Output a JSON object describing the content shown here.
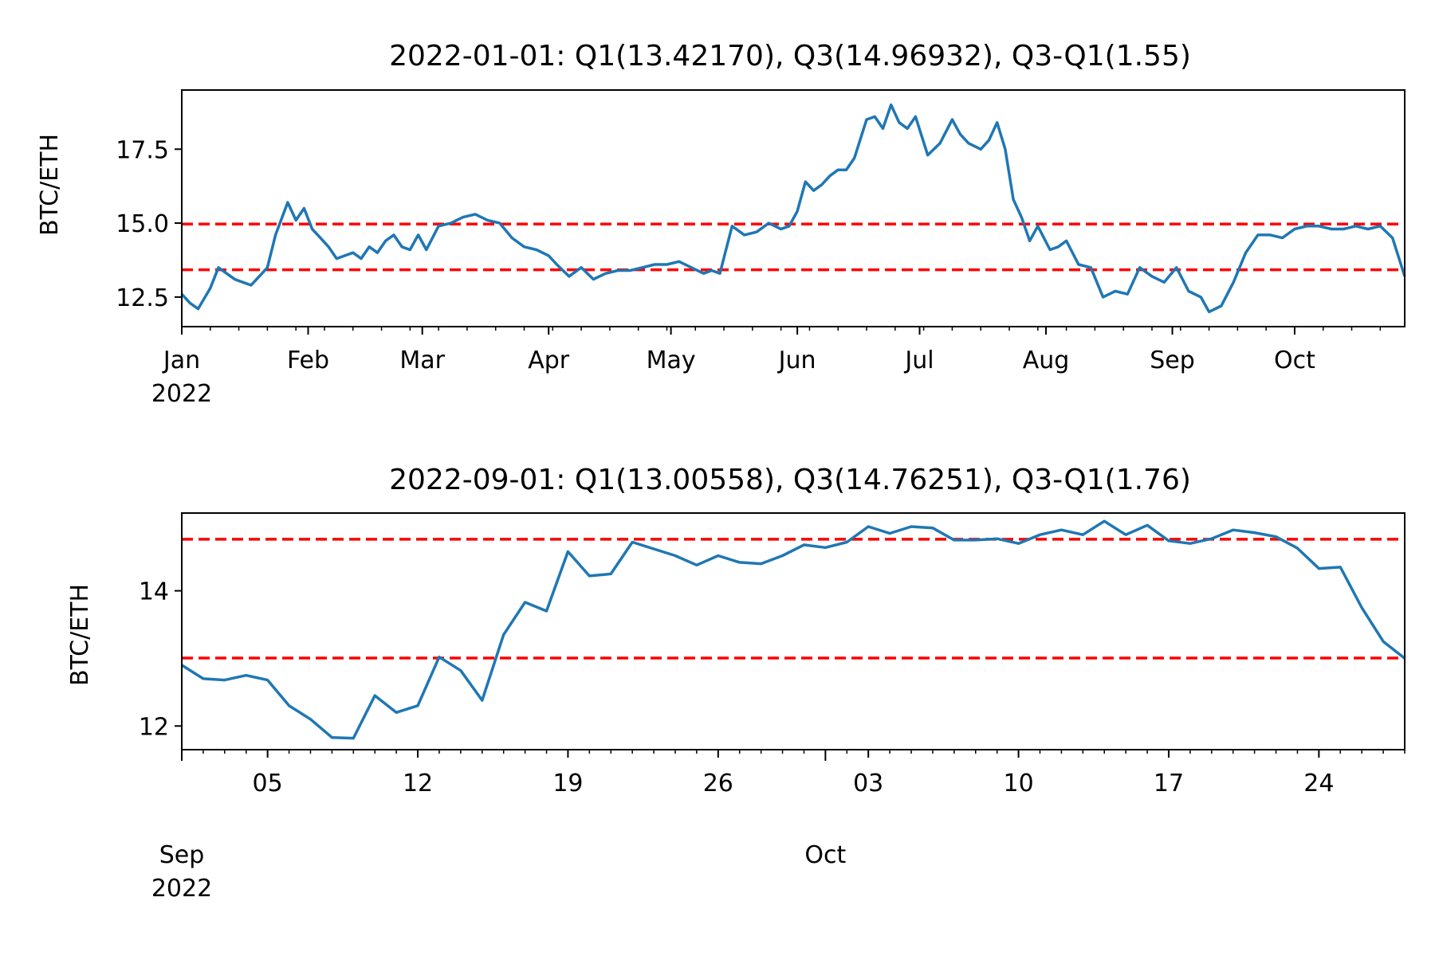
{
  "colors": {
    "line": "#1f77b4",
    "quartile": "#ff0000",
    "axis": "#000000"
  },
  "chart_data": [
    {
      "type": "line",
      "title": "2022-01-01: Q1(13.42170), Q3(14.96932), Q3-Q1(1.55)",
      "ylabel": "BTC/ETH",
      "xlim": [
        "2022-01-01",
        "2022-10-28"
      ],
      "ylim": [
        11.5,
        19.5
      ],
      "yticks": [
        12.5,
        15.0,
        17.5
      ],
      "ytick_labels": [
        "12.5",
        "15.0",
        "17.5"
      ],
      "xticks": [
        "2022-01-01",
        "2022-02-01",
        "2022-03-01",
        "2022-04-01",
        "2022-05-01",
        "2022-06-01",
        "2022-07-01",
        "2022-08-01",
        "2022-09-01",
        "2022-10-01"
      ],
      "xtick_labels": [
        "Jan",
        "Feb",
        "Mar",
        "Apr",
        "May",
        "Jun",
        "Jul",
        "Aug",
        "Sep",
        "Oct"
      ],
      "year_label": "2022",
      "hlines": [
        13.4217,
        14.96932
      ],
      "series": [
        {
          "x": [
            "2022-01-01",
            "2022-01-03",
            "2022-01-05",
            "2022-01-08",
            "2022-01-10",
            "2022-01-12",
            "2022-01-14",
            "2022-01-16",
            "2022-01-18",
            "2022-01-20",
            "2022-01-22",
            "2022-01-24",
            "2022-01-27",
            "2022-01-29",
            "2022-01-31",
            "2022-02-02",
            "2022-02-04",
            "2022-02-06",
            "2022-02-08",
            "2022-02-10",
            "2022-02-12",
            "2022-02-14",
            "2022-02-16",
            "2022-02-18",
            "2022-02-20",
            "2022-02-22",
            "2022-02-24",
            "2022-02-26",
            "2022-02-28",
            "2022-03-02",
            "2022-03-05",
            "2022-03-08",
            "2022-03-11",
            "2022-03-14",
            "2022-03-17",
            "2022-03-20",
            "2022-03-23",
            "2022-03-26",
            "2022-03-29",
            "2022-04-01",
            "2022-04-03",
            "2022-04-06",
            "2022-04-09",
            "2022-04-12",
            "2022-04-15",
            "2022-04-18",
            "2022-04-21",
            "2022-04-24",
            "2022-04-27",
            "2022-04-30",
            "2022-05-03",
            "2022-05-06",
            "2022-05-09",
            "2022-05-11",
            "2022-05-13",
            "2022-05-16",
            "2022-05-19",
            "2022-05-22",
            "2022-05-25",
            "2022-05-28",
            "2022-05-30",
            "2022-06-01",
            "2022-06-03",
            "2022-06-05",
            "2022-06-07",
            "2022-06-09",
            "2022-06-11",
            "2022-06-13",
            "2022-06-15",
            "2022-06-18",
            "2022-06-20",
            "2022-06-22",
            "2022-06-24",
            "2022-06-26",
            "2022-06-28",
            "2022-06-30",
            "2022-07-03",
            "2022-07-06",
            "2022-07-09",
            "2022-07-11",
            "2022-07-13",
            "2022-07-16",
            "2022-07-18",
            "2022-07-20",
            "2022-07-22",
            "2022-07-24",
            "2022-07-26",
            "2022-07-28",
            "2022-07-30",
            "2022-08-02",
            "2022-08-04",
            "2022-08-06",
            "2022-08-09",
            "2022-08-12",
            "2022-08-15",
            "2022-08-18",
            "2022-08-21",
            "2022-08-24",
            "2022-08-27",
            "2022-08-30",
            "2022-09-02",
            "2022-09-05",
            "2022-09-08",
            "2022-09-10",
            "2022-09-13",
            "2022-09-16",
            "2022-09-19",
            "2022-09-22",
            "2022-09-25",
            "2022-09-28",
            "2022-10-01",
            "2022-10-04",
            "2022-10-07",
            "2022-10-10",
            "2022-10-13",
            "2022-10-16",
            "2022-10-19",
            "2022-10-22",
            "2022-10-25",
            "2022-10-28"
          ],
          "y": [
            12.6,
            12.3,
            12.1,
            12.8,
            13.5,
            13.3,
            13.1,
            13.0,
            12.9,
            13.2,
            13.5,
            14.6,
            15.7,
            15.1,
            15.5,
            14.8,
            14.5,
            14.2,
            13.8,
            13.9,
            14.0,
            13.8,
            14.2,
            14.0,
            14.4,
            14.6,
            14.2,
            14.1,
            14.6,
            14.1,
            14.9,
            15.0,
            15.2,
            15.3,
            15.1,
            15.0,
            14.5,
            14.2,
            14.1,
            13.9,
            13.6,
            13.2,
            13.5,
            13.1,
            13.3,
            13.4,
            13.4,
            13.5,
            13.6,
            13.6,
            13.7,
            13.5,
            13.3,
            13.4,
            13.3,
            14.9,
            14.6,
            14.7,
            15.0,
            14.8,
            14.9,
            15.4,
            16.4,
            16.1,
            16.3,
            16.6,
            16.8,
            16.8,
            17.2,
            18.5,
            18.6,
            18.2,
            19.0,
            18.4,
            18.2,
            18.6,
            17.3,
            17.7,
            18.5,
            18.0,
            17.7,
            17.5,
            17.8,
            18.4,
            17.5,
            15.8,
            15.2,
            14.4,
            14.9,
            14.1,
            14.2,
            14.4,
            13.6,
            13.5,
            12.5,
            12.7,
            12.6,
            13.5,
            13.2,
            13.0,
            13.5,
            12.7,
            12.5,
            12.0,
            12.2,
            13.0,
            14.0,
            14.6,
            14.6,
            14.5,
            14.8,
            14.9,
            14.9,
            14.8,
            14.8,
            14.9,
            14.8,
            14.9,
            14.5,
            13.2
          ]
        }
      ]
    },
    {
      "type": "line",
      "title": "2022-09-01: Q1(13.00558), Q3(14.76251), Q3-Q1(1.76)",
      "ylabel": "BTC/ETH",
      "xlim": [
        "2022-09-01",
        "2022-10-28"
      ],
      "ylim": [
        11.65,
        15.15
      ],
      "yticks": [
        12,
        14
      ],
      "ytick_labels": [
        "12",
        "14"
      ],
      "xticks": [
        "2022-09-05",
        "2022-09-12",
        "2022-09-19",
        "2022-09-26",
        "2022-10-03",
        "2022-10-10",
        "2022-10-17",
        "2022-10-24"
      ],
      "xtick_labels": [
        "05",
        "12",
        "19",
        "26",
        "03",
        "10",
        "17",
        "24"
      ],
      "month_labels": [
        {
          "date": "2022-09-01",
          "label": "Sep",
          "year": "2022"
        },
        {
          "date": "2022-10-01",
          "label": "Oct",
          "year": ""
        }
      ],
      "hlines": [
        13.00558,
        14.76251
      ],
      "series": [
        {
          "x": [
            "2022-09-01",
            "2022-09-02",
            "2022-09-03",
            "2022-09-04",
            "2022-09-05",
            "2022-09-06",
            "2022-09-07",
            "2022-09-08",
            "2022-09-09",
            "2022-09-10",
            "2022-09-11",
            "2022-09-12",
            "2022-09-13",
            "2022-09-14",
            "2022-09-15",
            "2022-09-16",
            "2022-09-17",
            "2022-09-18",
            "2022-09-19",
            "2022-09-20",
            "2022-09-21",
            "2022-09-22",
            "2022-09-23",
            "2022-09-24",
            "2022-09-25",
            "2022-09-26",
            "2022-09-27",
            "2022-09-28",
            "2022-09-29",
            "2022-09-30",
            "2022-10-01",
            "2022-10-02",
            "2022-10-03",
            "2022-10-04",
            "2022-10-05",
            "2022-10-06",
            "2022-10-07",
            "2022-10-08",
            "2022-10-09",
            "2022-10-10",
            "2022-10-11",
            "2022-10-12",
            "2022-10-13",
            "2022-10-14",
            "2022-10-15",
            "2022-10-16",
            "2022-10-17",
            "2022-10-18",
            "2022-10-19",
            "2022-10-20",
            "2022-10-21",
            "2022-10-22",
            "2022-10-23",
            "2022-10-24",
            "2022-10-25",
            "2022-10-26",
            "2022-10-27",
            "2022-10-28"
          ],
          "y": [
            12.9,
            12.7,
            12.68,
            12.75,
            12.68,
            12.3,
            12.1,
            11.83,
            11.82,
            12.45,
            12.2,
            12.3,
            13.02,
            12.82,
            12.38,
            13.35,
            13.83,
            13.7,
            14.58,
            14.22,
            14.25,
            14.72,
            14.62,
            14.52,
            14.38,
            14.52,
            14.42,
            14.4,
            14.52,
            14.68,
            14.64,
            14.72,
            14.95,
            14.85,
            14.95,
            14.93,
            14.75,
            14.75,
            14.77,
            14.7,
            14.83,
            14.9,
            14.83,
            15.03,
            14.83,
            14.97,
            14.74,
            14.7,
            14.77,
            14.9,
            14.86,
            14.8,
            14.63,
            14.33,
            14.35,
            13.75,
            13.25,
            13.0
          ]
        }
      ]
    }
  ]
}
